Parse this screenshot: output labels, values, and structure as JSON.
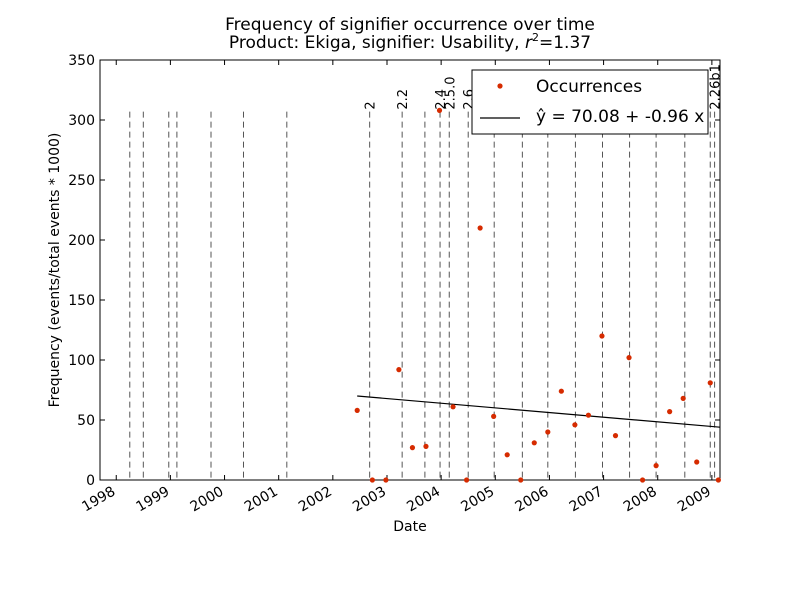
{
  "chart_data": {
    "type": "scatter",
    "title": "Frequency of signifier occurrence over time",
    "subtitle_prefix": "Product: Ekiga, signifier: Usability, ",
    "subtitle_r2_symbol": "r",
    "subtitle_r2_exp": "2",
    "subtitle_r2_value": "=1.37",
    "xlabel": "Date",
    "ylabel": "Frequency (events/total events * 1000)",
    "xlim": [
      1997.7,
      2009.15
    ],
    "ylim": [
      0,
      350
    ],
    "x_ticks": [
      1998,
      1999,
      2000,
      2001,
      2002,
      2003,
      2004,
      2005,
      2006,
      2007,
      2008,
      2009
    ],
    "x_tick_labels": [
      "1998",
      "1999",
      "2000",
      "2001",
      "2002",
      "2003",
      "2004",
      "2005",
      "2006",
      "2007",
      "2008",
      "2009"
    ],
    "y_ticks": [
      0,
      50,
      100,
      150,
      200,
      250,
      300,
      350
    ],
    "y_tick_labels": [
      "0",
      "50",
      "100",
      "150",
      "200",
      "250",
      "300",
      "350"
    ],
    "grid": false,
    "legend_position": "top-right",
    "colors": {
      "points": "#d62b00",
      "fit_line": "#000000",
      "release_lines": "#555555"
    },
    "series": [
      {
        "name": "Occurrences",
        "points": [
          {
            "x": 2002.45,
            "y": 58
          },
          {
            "x": 2002.73,
            "y": 0
          },
          {
            "x": 2002.98,
            "y": 0
          },
          {
            "x": 2003.22,
            "y": 92
          },
          {
            "x": 2003.47,
            "y": 27
          },
          {
            "x": 2003.72,
            "y": 28
          },
          {
            "x": 2003.97,
            "y": 308
          },
          {
            "x": 2004.22,
            "y": 61
          },
          {
            "x": 2004.47,
            "y": 0
          },
          {
            "x": 2004.72,
            "y": 210
          },
          {
            "x": 2004.97,
            "y": 53
          },
          {
            "x": 2005.22,
            "y": 21
          },
          {
            "x": 2005.47,
            "y": 0
          },
          {
            "x": 2005.72,
            "y": 31
          },
          {
            "x": 2005.97,
            "y": 40
          },
          {
            "x": 2006.22,
            "y": 74
          },
          {
            "x": 2006.47,
            "y": 46
          },
          {
            "x": 2006.72,
            "y": 54
          },
          {
            "x": 2006.97,
            "y": 120
          },
          {
            "x": 2007.22,
            "y": 37
          },
          {
            "x": 2007.47,
            "y": 102
          },
          {
            "x": 2007.72,
            "y": 0
          },
          {
            "x": 2007.97,
            "y": 12
          },
          {
            "x": 2008.22,
            "y": 57
          },
          {
            "x": 2008.47,
            "y": 68
          },
          {
            "x": 2008.72,
            "y": 15
          },
          {
            "x": 2008.97,
            "y": 81
          },
          {
            "x": 2009.12,
            "y": 0
          }
        ]
      }
    ],
    "fit_line": {
      "name": "ŷ = 70.08 + -0.96 x",
      "x_start": 2002.45,
      "x_end": 2009.15,
      "y_start": 70,
      "y_end": 44
    },
    "release_lines": [
      {
        "x": 1998.25,
        "label": ""
      },
      {
        "x": 1998.5,
        "label": ""
      },
      {
        "x": 1998.97,
        "label": ""
      },
      {
        "x": 1999.12,
        "label": ""
      },
      {
        "x": 1999.75,
        "label": ""
      },
      {
        "x": 2000.35,
        "label": ""
      },
      {
        "x": 2001.15,
        "label": ""
      },
      {
        "x": 2002.68,
        "label": "2"
      },
      {
        "x": 2003.28,
        "label": "2.2"
      },
      {
        "x": 2003.7,
        "label": ""
      },
      {
        "x": 2003.98,
        "label": "2.4"
      },
      {
        "x": 2004.15,
        "label": "2.5.0"
      },
      {
        "x": 2004.5,
        "label": "2.6"
      },
      {
        "x": 2004.98,
        "label": ""
      },
      {
        "x": 2005.5,
        "label": ""
      },
      {
        "x": 2005.97,
        "label": ""
      },
      {
        "x": 2006.48,
        "label": ""
      },
      {
        "x": 2006.98,
        "label": ""
      },
      {
        "x": 2007.48,
        "label": ""
      },
      {
        "x": 2007.97,
        "label": ""
      },
      {
        "x": 2008.5,
        "label": ""
      },
      {
        "x": 2008.97,
        "label": ""
      },
      {
        "x": 2009.05,
        "label": "2.26b1"
      }
    ],
    "release_line_top": 307
  }
}
